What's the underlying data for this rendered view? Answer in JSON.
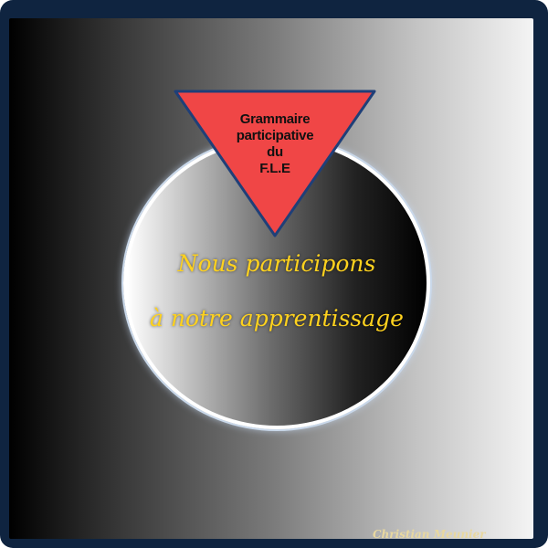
{
  "badge": {
    "lines": [
      "Grammaire",
      "participative",
      "du",
      "F.L.E"
    ]
  },
  "slogan": {
    "line1": "Nous participons",
    "line2": "à notre apprentissage"
  },
  "signature": "Christian Meunier",
  "colors": {
    "frame": "#0f2440",
    "triangle_fill": "#f04646",
    "triangle_border": "#1f3f78",
    "slogan_text": "#ffd21e",
    "circle_border": "#ffffff"
  }
}
